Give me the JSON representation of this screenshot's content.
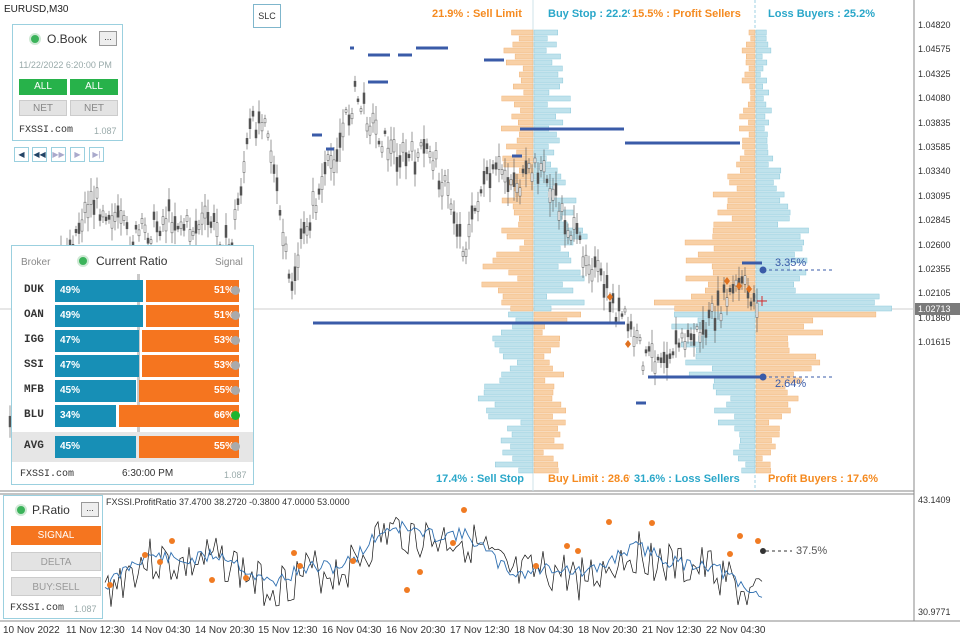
{
  "chart": {
    "symbol": "EURUSD,M30",
    "slc_label": "SLC",
    "current_price": "1.02713",
    "y_ticks": [
      "1.04820",
      "1.04575",
      "1.04325",
      "1.04080",
      "1.03835",
      "1.03585",
      "1.03340",
      "1.03095",
      "1.02845",
      "1.02600",
      "1.02355",
      "1.02105",
      "1.01860",
      "1.01615"
    ],
    "x_ticks": [
      "10 Nov 2022",
      "11 Nov 12:30",
      "14 Nov 04:30",
      "14 Nov 20:30",
      "15 Nov 12:30",
      "16 Nov 04:30",
      "16 Nov 20:30",
      "17 Nov 12:30",
      "18 Nov 04:30",
      "18 Nov 20:30",
      "21 Nov 12:30",
      "22 Nov 04:30"
    ],
    "level_upper_pct": "3.35%",
    "level_lower_pct": "2.64%",
    "colors": {
      "buy": "#178fb6",
      "sell": "#f5751f",
      "level": "#3a5ba8"
    }
  },
  "order_book": {
    "sell_limit": "21.9% : Sell Limit",
    "buy_stop": "Buy Stop : 22.2%",
    "profit_sellers": "15.5% : Profit Sellers",
    "loss_buyers": "Loss Buyers : 25.2%",
    "sell_stop": "17.4% : Sell Stop",
    "buy_limit": "Buy Limit : 28.6%",
    "loss_sellers": "31.6% : Loss Sellers",
    "profit_buyers": "Profit Buyers : 17.6%"
  },
  "obook_panel": {
    "title": "O.Book",
    "minimize": "...",
    "datetime": "11/22/2022 6:20:00 PM",
    "btn_all_1": "ALL",
    "btn_all_2": "ALL",
    "btn_net_1": "NET",
    "btn_net_2": "NET",
    "brand": "FXSSI.com",
    "version": "1.087",
    "nav": [
      "◀",
      "◀◀",
      "▶▶",
      "▶",
      "▶|"
    ]
  },
  "ratio_panel": {
    "header_broker": "Broker",
    "title": "Current Ratio",
    "header_signal": "Signal",
    "rows": [
      {
        "broker": "DUK",
        "buy": "49%",
        "sell": "51%",
        "buy_value": 49,
        "signal": "neutral"
      },
      {
        "broker": "OAN",
        "buy": "49%",
        "sell": "51%",
        "buy_value": 49,
        "signal": "neutral"
      },
      {
        "broker": "IGG",
        "buy": "47%",
        "sell": "53%",
        "buy_value": 47,
        "signal": "neutral"
      },
      {
        "broker": "SSI",
        "buy": "47%",
        "sell": "53%",
        "buy_value": 47,
        "signal": "neutral"
      },
      {
        "broker": "MFB",
        "buy": "45%",
        "sell": "55%",
        "buy_value": 45,
        "signal": "neutral"
      },
      {
        "broker": "BLU",
        "buy": "34%",
        "sell": "66%",
        "buy_value": 34,
        "signal": "active"
      }
    ],
    "avg": {
      "broker": "AVG",
      "buy": "45%",
      "sell": "55%",
      "buy_value": 45
    },
    "brand": "FXSSI.com",
    "time": "6:30:00 PM",
    "version": "1.087"
  },
  "pratio_panel": {
    "title": "P.Ratio",
    "minimize": "...",
    "btn_signal": "SIGNAL",
    "btn_delta": "DELTA",
    "btn_buysell": "BUY:SELL",
    "brand": "FXSSI.com",
    "version": "1.087"
  },
  "indicator": {
    "label": "FXSSI.ProfitRatio 37.4700 38.2720 -0.3800 47.0000 53.0000",
    "y_top": "43.1409",
    "y_bottom": "30.9771",
    "value_pct": "37.5%"
  }
}
